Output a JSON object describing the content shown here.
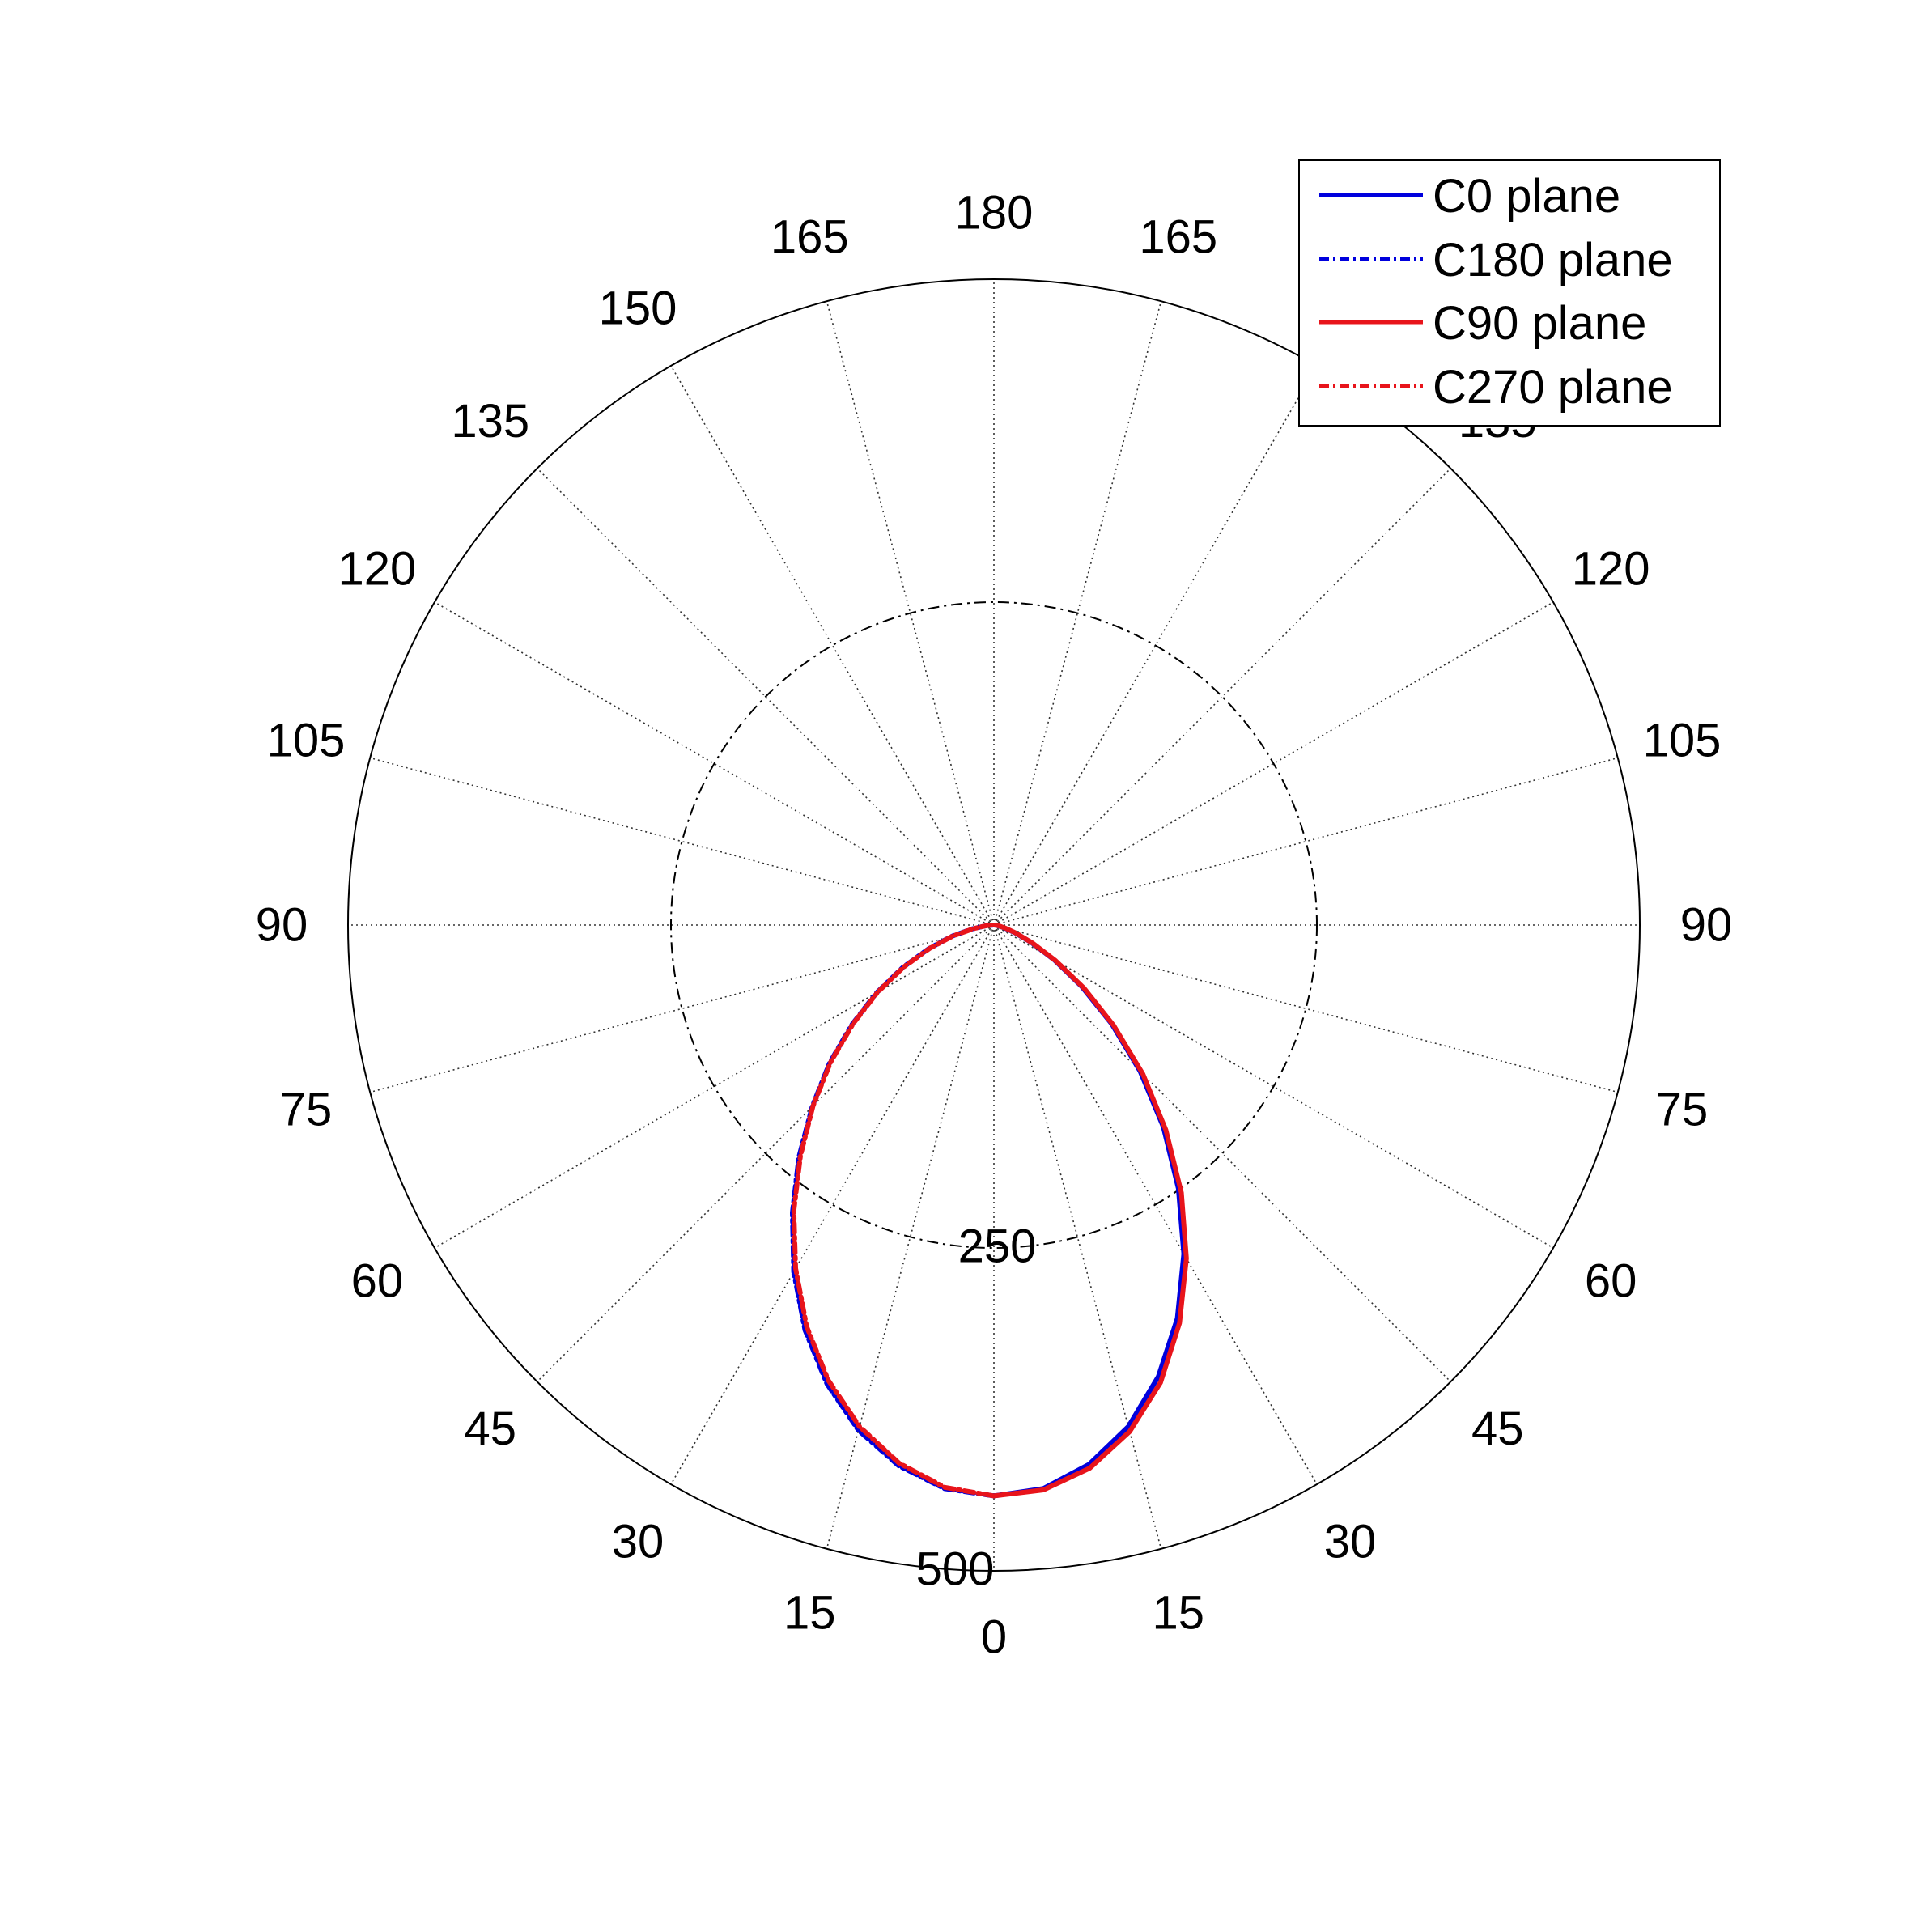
{
  "chart_data": {
    "type": "polar-line",
    "title": "",
    "angle_unit": "degrees",
    "angle_zero_direction": "bottom",
    "angle_mirrored": true,
    "angle_tick_labels": [
      {
        "angle": 0,
        "label": "0"
      },
      {
        "angle": 15,
        "label": "15"
      },
      {
        "angle": 30,
        "label": "30"
      },
      {
        "angle": 45,
        "label": "45"
      },
      {
        "angle": 60,
        "label": "60"
      },
      {
        "angle": 75,
        "label": "75"
      },
      {
        "angle": 90,
        "label": "90"
      },
      {
        "angle": 105,
        "label": "105"
      },
      {
        "angle": 120,
        "label": "120"
      },
      {
        "angle": 135,
        "label": "135"
      },
      {
        "angle": 150,
        "label": "150"
      },
      {
        "angle": 165,
        "label": "165"
      },
      {
        "angle": 180,
        "label": "180"
      }
    ],
    "radial_ticks": [
      {
        "value": 250,
        "label": "250"
      },
      {
        "value": 500,
        "label": "500"
      }
    ],
    "rlim": [
      0,
      500
    ],
    "grid": true,
    "legend_position": "top-right",
    "colors": {
      "blue": "#0000dd",
      "red": "#e8141b"
    },
    "series": [
      {
        "name": "C0 plane",
        "side": "right",
        "color": "#0000dd",
        "line_style": "solid",
        "angles": [
          0,
          5,
          10,
          15,
          20,
          25,
          30,
          35,
          40,
          45,
          50,
          55,
          60,
          65,
          70,
          75,
          80,
          85,
          90
        ],
        "values": [
          442,
          438,
          424,
          402,
          372,
          336,
          294,
          249,
          204,
          160,
          119,
          83,
          54,
          32,
          17,
          8,
          3,
          1,
          0
        ]
      },
      {
        "name": "C180 plane",
        "side": "left",
        "color": "#0000dd",
        "line_style": "dash-dot",
        "angles": [
          0,
          5,
          10,
          15,
          20,
          25,
          30,
          35,
          40,
          45,
          50,
          55,
          60,
          65,
          70,
          75,
          80,
          85,
          90
        ],
        "values": [
          442,
          438,
          425,
          405,
          378,
          346,
          310,
          272,
          235,
          199,
          166,
          134,
          105,
          78,
          54,
          34,
          17,
          6,
          0
        ]
      },
      {
        "name": "C90 plane",
        "side": "right",
        "color": "#e8141b",
        "line_style": "solid",
        "angles": [
          0,
          5,
          10,
          15,
          20,
          25,
          30,
          35,
          40,
          45,
          50,
          55,
          60,
          65,
          70,
          75,
          80,
          85,
          90
        ],
        "values": [
          442,
          439,
          427,
          406,
          377,
          340,
          298,
          253,
          207,
          163,
          121,
          85,
          55,
          33,
          18,
          9,
          4,
          1,
          0
        ]
      },
      {
        "name": "C270 plane",
        "side": "left",
        "color": "#e8141b",
        "line_style": "dash-dot",
        "angles": [
          0,
          5,
          10,
          15,
          20,
          25,
          30,
          35,
          40,
          45,
          50,
          55,
          60,
          65,
          70,
          75,
          80,
          85,
          90
        ],
        "values": [
          442,
          437,
          423,
          402,
          375,
          343,
          307,
          270,
          233,
          198,
          165,
          133,
          104,
          77,
          53,
          33,
          16,
          6,
          0
        ]
      }
    ]
  }
}
